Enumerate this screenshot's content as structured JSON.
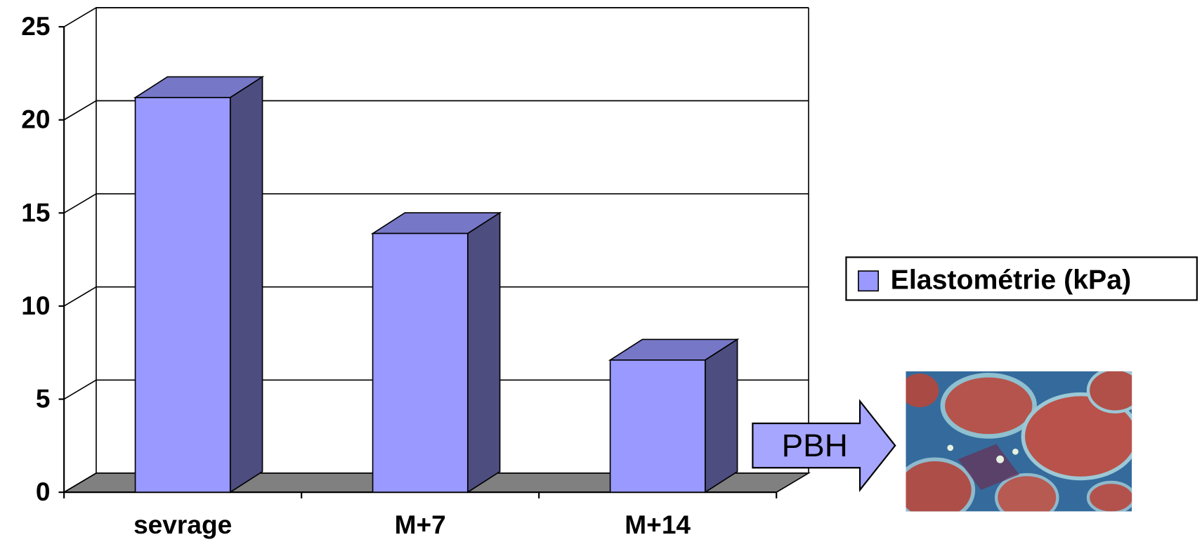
{
  "chart_data": {
    "type": "bar",
    "categories": [
      "sevrage",
      "M+7",
      "M+14"
    ],
    "series": [
      {
        "name": "Elastométrie (kPa)",
        "color": "#9999ff",
        "values": [
          21.2,
          13.9,
          7.1
        ]
      }
    ],
    "ylim": [
      0,
      25
    ],
    "yticks": [
      0,
      5,
      10,
      15,
      20,
      25
    ],
    "grid": true,
    "legend": "right",
    "annotation": "PBH"
  }
}
